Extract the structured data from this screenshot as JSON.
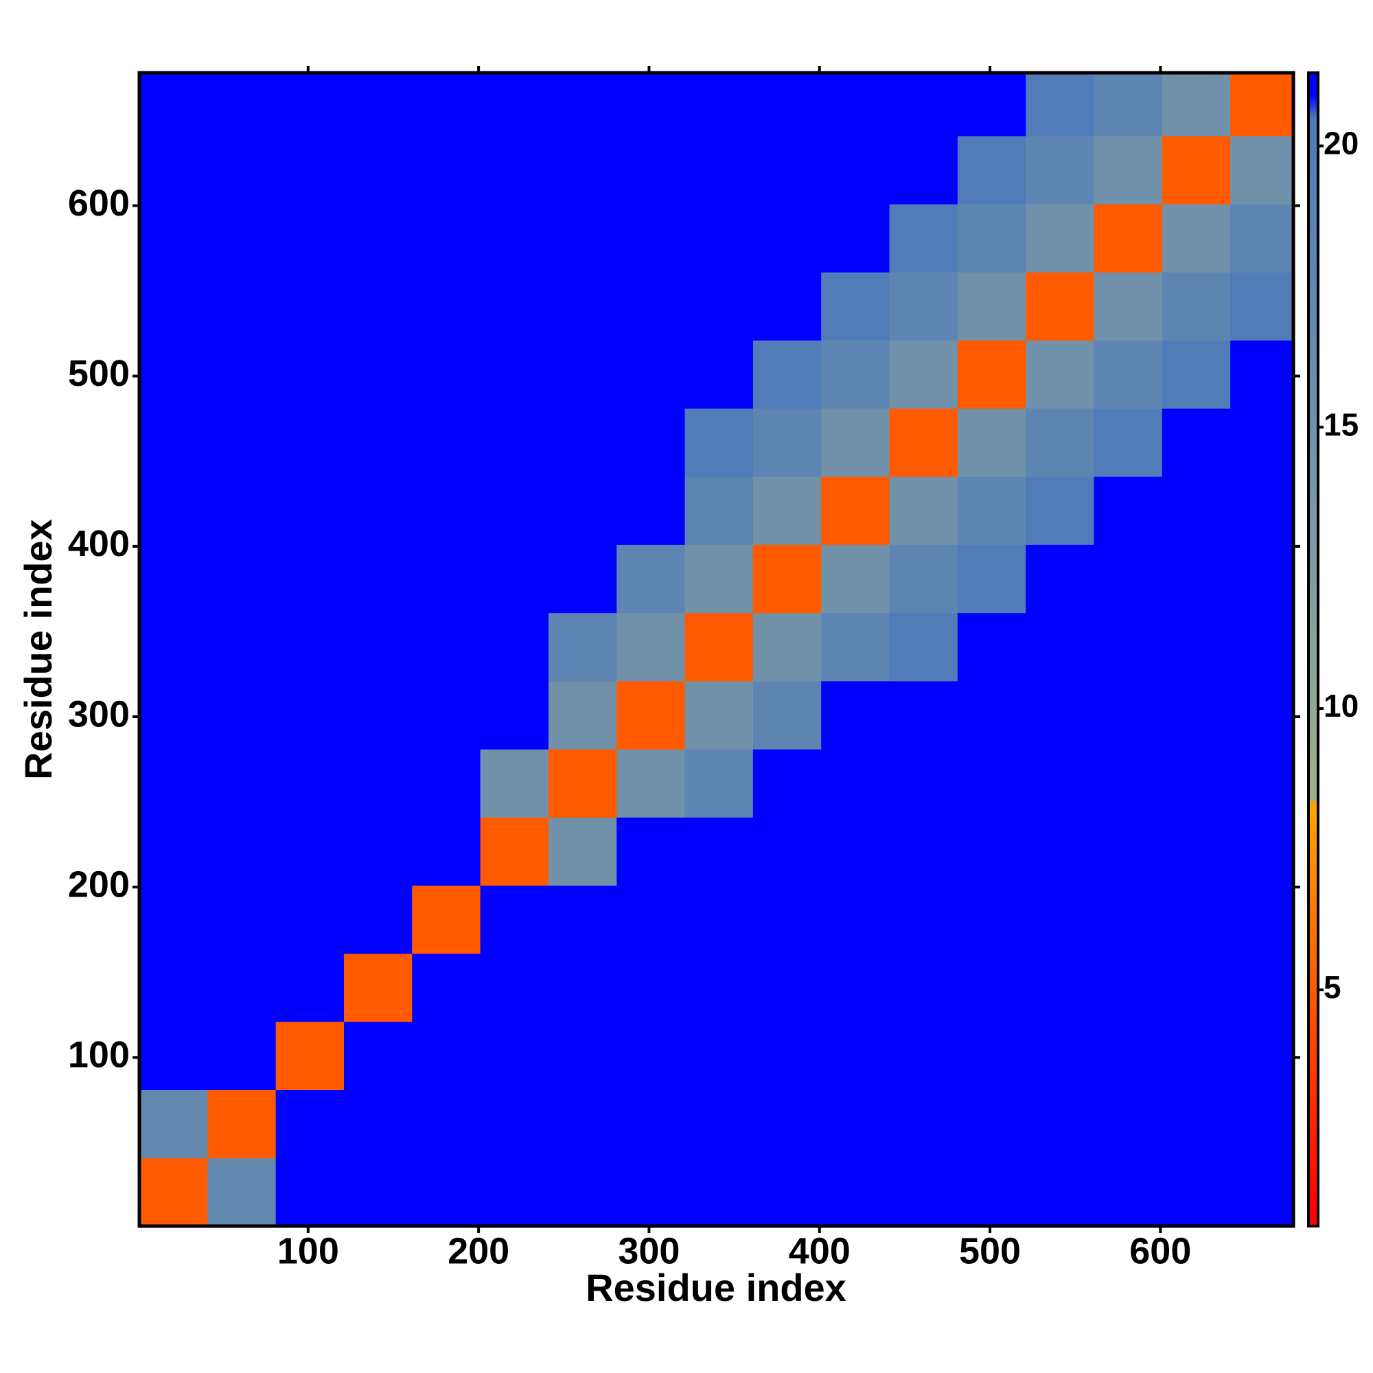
{
  "chart_data": {
    "type": "heatmap",
    "x_label": "Residue index",
    "y_label": "Residue index",
    "bins": [
      1,
      41,
      81,
      121,
      161,
      201,
      241,
      281,
      321,
      361,
      401,
      441,
      481,
      521,
      561,
      601,
      641,
      678
    ],
    "values": [
      [
        5,
        17,
        21,
        21,
        21,
        21,
        21,
        21,
        21,
        21,
        21,
        21,
        21,
        21,
        21,
        21,
        21
      ],
      [
        17,
        5,
        21,
        21,
        21,
        21,
        21,
        21,
        21,
        21,
        21,
        21,
        21,
        21,
        21,
        21,
        21
      ],
      [
        21,
        21,
        5,
        21,
        21,
        21,
        21,
        21,
        21,
        21,
        21,
        21,
        21,
        21,
        21,
        21,
        21
      ],
      [
        21,
        21,
        21,
        5,
        21,
        21,
        21,
        21,
        21,
        21,
        21,
        21,
        21,
        21,
        21,
        21,
        21
      ],
      [
        21,
        21,
        21,
        21,
        5,
        21,
        21,
        21,
        21,
        21,
        21,
        21,
        21,
        21,
        21,
        21,
        21
      ],
      [
        21,
        21,
        21,
        21,
        21,
        5,
        15,
        21,
        21,
        21,
        21,
        21,
        21,
        21,
        21,
        21,
        21
      ],
      [
        21,
        21,
        21,
        21,
        21,
        15,
        5,
        15,
        18,
        21,
        21,
        21,
        21,
        21,
        21,
        21,
        21
      ],
      [
        21,
        21,
        21,
        21,
        21,
        21,
        15,
        5,
        15,
        18,
        21,
        21,
        21,
        21,
        21,
        21,
        21
      ],
      [
        21,
        21,
        21,
        21,
        21,
        21,
        18,
        15,
        5,
        15,
        18,
        20,
        21,
        21,
        21,
        21,
        21
      ],
      [
        21,
        21,
        21,
        21,
        21,
        21,
        21,
        18,
        15,
        5,
        15,
        18,
        20,
        21,
        21,
        21,
        21
      ],
      [
        21,
        21,
        21,
        21,
        21,
        21,
        21,
        21,
        18,
        15,
        5,
        15,
        18,
        20,
        21,
        21,
        21
      ],
      [
        21,
        21,
        21,
        21,
        21,
        21,
        21,
        21,
        20,
        18,
        15,
        5,
        15,
        18,
        20,
        21,
        21
      ],
      [
        21,
        21,
        21,
        21,
        21,
        21,
        21,
        21,
        21,
        20,
        18,
        15,
        5,
        15,
        18,
        20,
        21
      ],
      [
        21,
        21,
        21,
        21,
        21,
        21,
        21,
        21,
        21,
        21,
        20,
        18,
        15,
        5,
        15,
        18,
        20
      ],
      [
        21,
        21,
        21,
        21,
        21,
        21,
        21,
        21,
        21,
        21,
        21,
        20,
        18,
        15,
        5,
        15,
        18
      ],
      [
        21,
        21,
        21,
        21,
        21,
        21,
        21,
        21,
        21,
        21,
        21,
        21,
        20,
        18,
        15,
        5,
        15
      ],
      [
        21,
        21,
        21,
        21,
        21,
        21,
        21,
        21,
        21,
        21,
        21,
        21,
        21,
        20,
        18,
        15,
        5
      ]
    ],
    "xlim": [
      1,
      678
    ],
    "ylim": [
      1,
      678
    ],
    "xticks": [
      100,
      200,
      300,
      400,
      500,
      600
    ],
    "yticks": [
      100,
      200,
      300,
      400,
      500,
      600
    ],
    "clim": [
      0.8,
      21.3
    ],
    "cticks": [
      5,
      10,
      15,
      20
    ],
    "colorscale": [
      {
        "value": 1,
        "color": "#ff0000"
      },
      {
        "value": 8.3,
        "color": "#ffa500"
      },
      {
        "value": 8.4,
        "color": "#9fae8c"
      },
      {
        "value": 13,
        "color": "#7d9aa5"
      },
      {
        "value": 20.5,
        "color": "#4f7ab8"
      },
      {
        "value": 20.9,
        "color": "#0000ff"
      }
    ]
  }
}
